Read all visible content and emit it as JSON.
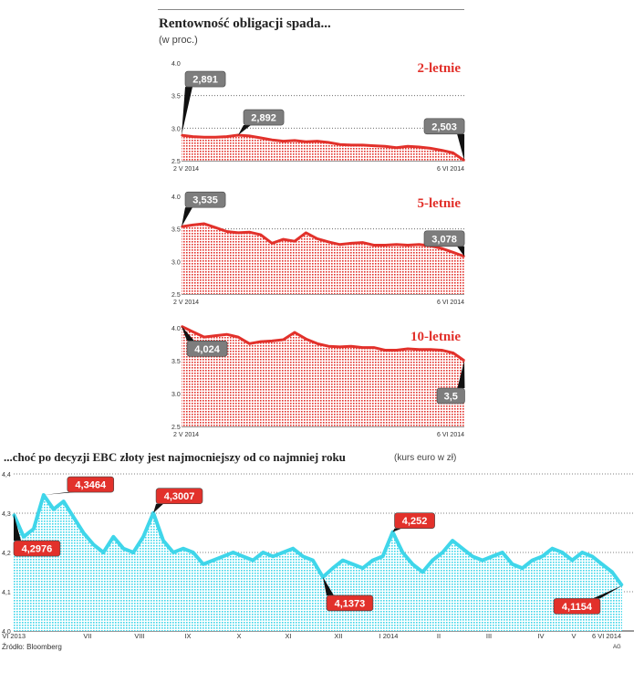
{
  "header": {
    "title": "Rentowność obligacji spada...",
    "subtitle": "(w proc.)"
  },
  "euro": {
    "title": "...choć po decyzji EBC złoty jest najmocniejszy od co najmniej roku",
    "subtitle": "(kurs euro w zł)"
  },
  "footer": {
    "source": "Źródło: Bloomberg",
    "credit": "AG"
  },
  "colors": {
    "bond": "#e2312b",
    "euro": "#3fd6ea",
    "callout_red": "#e2312b",
    "callout_gray": "#7d7d7d"
  },
  "chart_data": [
    {
      "type": "area",
      "series_label": "2-letnie",
      "ylim": [
        2.5,
        4.0
      ],
      "yticks": [
        "4.0",
        "3.5",
        "3.0",
        "2.5"
      ],
      "xticks": [
        "2 V 2014",
        "6 VI 2014"
      ],
      "values": [
        2.891,
        2.87,
        2.86,
        2.86,
        2.87,
        2.892,
        2.88,
        2.85,
        2.82,
        2.8,
        2.81,
        2.79,
        2.8,
        2.78,
        2.75,
        2.74,
        2.74,
        2.73,
        2.72,
        2.7,
        2.72,
        2.71,
        2.69,
        2.66,
        2.62,
        2.503
      ],
      "annotations": [
        {
          "text": "2,891",
          "index": 0,
          "style": "gray"
        },
        {
          "text": "2,892",
          "index": 5,
          "style": "gray"
        },
        {
          "text": "2,503",
          "index": 25,
          "style": "gray"
        }
      ]
    },
    {
      "type": "area",
      "series_label": "5-letnie",
      "ylim": [
        2.5,
        4.0
      ],
      "yticks": [
        "4.0",
        "3.5",
        "3.0",
        "2.5"
      ],
      "xticks": [
        "2 V 2014",
        "6 VI 2014"
      ],
      "values": [
        3.535,
        3.56,
        3.58,
        3.52,
        3.46,
        3.44,
        3.45,
        3.41,
        3.28,
        3.34,
        3.31,
        3.44,
        3.35,
        3.3,
        3.26,
        3.28,
        3.29,
        3.25,
        3.25,
        3.26,
        3.25,
        3.26,
        3.24,
        3.2,
        3.14,
        3.078
      ],
      "annotations": [
        {
          "text": "3,535",
          "index": 0,
          "style": "gray"
        },
        {
          "text": "3,078",
          "index": 25,
          "style": "gray"
        }
      ]
    },
    {
      "type": "area",
      "series_label": "10-letnie",
      "ylim": [
        2.5,
        4.0
      ],
      "yticks": [
        "4.0",
        "3.5",
        "3.0",
        "2.5"
      ],
      "xticks": [
        "2 V 2014",
        "6 VI 2014"
      ],
      "values": [
        4.024,
        3.94,
        3.86,
        3.88,
        3.9,
        3.86,
        3.76,
        3.79,
        3.8,
        3.82,
        3.93,
        3.83,
        3.76,
        3.72,
        3.71,
        3.72,
        3.7,
        3.7,
        3.66,
        3.66,
        3.68,
        3.67,
        3.67,
        3.66,
        3.62,
        3.5
      ],
      "annotations": [
        {
          "text": "4,024",
          "index": 0,
          "style": "gray"
        },
        {
          "text": "3,5",
          "index": 25,
          "style": "gray"
        }
      ]
    },
    {
      "type": "area",
      "ylim": [
        4.0,
        4.4
      ],
      "yticks": [
        "4,4",
        "4,3",
        "4,2",
        "4,1",
        "4,0"
      ],
      "xticks": [
        "6 VI 2013",
        "VII",
        "VIII",
        "IX",
        "X",
        "XI",
        "XII",
        "I 2014",
        "II",
        "III",
        "IV",
        "V",
        "6 VI 2014"
      ],
      "values": [
        4.2976,
        4.24,
        4.26,
        4.3464,
        4.31,
        4.33,
        4.29,
        4.25,
        4.22,
        4.2,
        4.24,
        4.21,
        4.2,
        4.24,
        4.3007,
        4.23,
        4.2,
        4.21,
        4.2,
        4.17,
        4.18,
        4.19,
        4.2,
        4.19,
        4.18,
        4.2,
        4.19,
        4.2,
        4.21,
        4.19,
        4.18,
        4.1373,
        4.16,
        4.18,
        4.17,
        4.16,
        4.18,
        4.19,
        4.252,
        4.2,
        4.17,
        4.15,
        4.18,
        4.2,
        4.23,
        4.21,
        4.19,
        4.18,
        4.19,
        4.2,
        4.17,
        4.16,
        4.18,
        4.19,
        4.21,
        4.2,
        4.18,
        4.2,
        4.19,
        4.17,
        4.15,
        4.1154
      ],
      "annotations": [
        {
          "text": "4,2976",
          "index": 0,
          "style": "red"
        },
        {
          "text": "4,3464",
          "index": 3,
          "style": "red"
        },
        {
          "text": "4,3007",
          "index": 14,
          "style": "red"
        },
        {
          "text": "4,1373",
          "index": 31,
          "style": "red"
        },
        {
          "text": "4,252",
          "index": 38,
          "style": "red"
        },
        {
          "text": "4,1154",
          "index": 61,
          "style": "red"
        }
      ]
    }
  ]
}
